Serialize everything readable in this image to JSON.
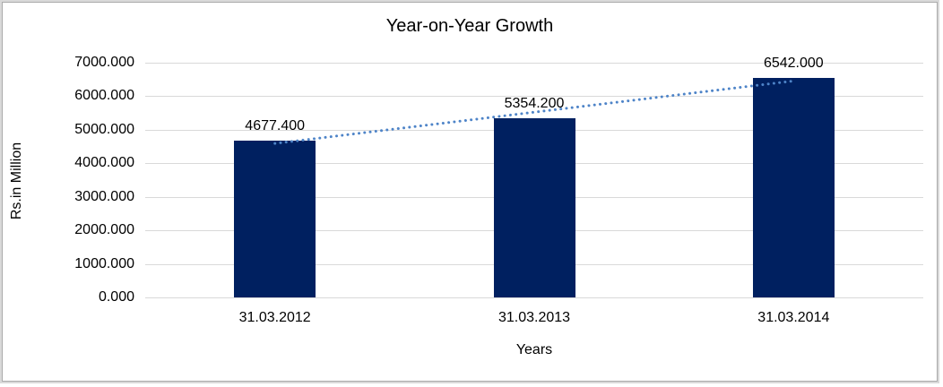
{
  "chart_data": {
    "type": "bar",
    "title": "Year-on-Year Growth",
    "categories": [
      "31.03.2012",
      "31.03.2013",
      "31.03.2014"
    ],
    "values": [
      4677.4,
      5354.2,
      6542.0
    ],
    "value_labels": [
      "4677.400",
      "5354.200",
      "6542.000"
    ],
    "series_count": 1,
    "xlabel": "Years",
    "ylabel": "Rs.in Million",
    "ylim": [
      0,
      7000
    ],
    "ytick_step": 1000,
    "ytick_labels": [
      "0.000",
      "1000.000",
      "2000.000",
      "3000.000",
      "4000.000",
      "5000.000",
      "6000.000",
      "7000.000"
    ],
    "grid": true,
    "legend_position": "none",
    "trendline": {
      "type": "linear",
      "style": "dotted"
    },
    "colors": {
      "bar": "#002060",
      "gridline": "#d9d9d9",
      "trendline": "#4e84c8",
      "text": "#000000",
      "frame_border": "#d9d9d9"
    }
  }
}
